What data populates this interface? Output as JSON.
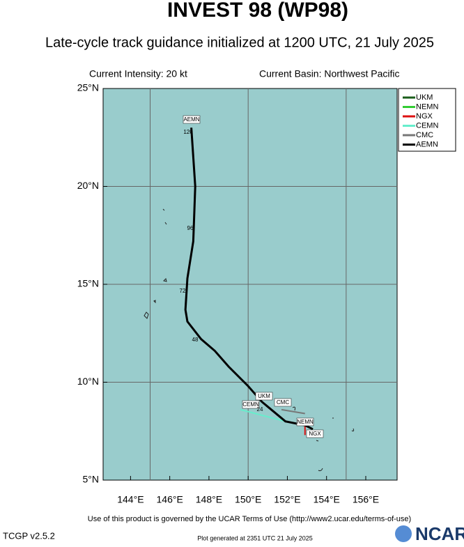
{
  "header": {
    "title": "INVEST 98 (WP98)",
    "subtitle": "Late-cycle track guidance initialized at 1200 UTC, 21 July 2025",
    "intensity": "Current Intensity: 20 kt",
    "basin": "Current Basin: Northwest Pacific"
  },
  "map": {
    "xlim": [
      142.6,
      157.6
    ],
    "ylim": [
      5,
      25
    ],
    "xticks": [
      {
        "value": 144,
        "label": "144°E"
      },
      {
        "value": 146,
        "label": "146°E"
      },
      {
        "value": 148,
        "label": "148°E"
      },
      {
        "value": 150,
        "label": "150°E"
      },
      {
        "value": 152,
        "label": "152°E"
      },
      {
        "value": 154,
        "label": "154°E"
      },
      {
        "value": 156,
        "label": "156°E"
      }
    ],
    "yticks": [
      {
        "value": 5,
        "label": "5°N"
      },
      {
        "value": 10,
        "label": "10°N"
      },
      {
        "value": 15,
        "label": "15°N"
      },
      {
        "value": 20,
        "label": "20°N"
      },
      {
        "value": 25,
        "label": "25°N"
      }
    ],
    "grid_lons": [
      145,
      150,
      155
    ],
    "grid_lats": [
      10,
      15,
      20
    ],
    "tracks": [
      {
        "name": "UKM",
        "color": "#1a5e1a",
        "lon": [
          153.3,
          152.9,
          151.9,
          150.7
        ],
        "lat": [
          7.6,
          7.8,
          8.0,
          9.0
        ]
      },
      {
        "name": "NEMN",
        "color": "#33cc33",
        "lon": [
          153.3,
          152.9
        ],
        "lat": [
          7.6,
          7.8
        ]
      },
      {
        "name": "NGX",
        "color": "#dd1111",
        "lon": [
          152.9,
          152.9
        ],
        "lat": [
          7.8,
          7.3
        ]
      },
      {
        "name": "CEMN",
        "color": "#66eecc",
        "lon": [
          151.9,
          149.6
        ],
        "lat": [
          8.0,
          8.6
        ]
      },
      {
        "name": "CMC",
        "color": "#777777",
        "lon": [
          152.9,
          151.7
        ],
        "lat": [
          8.4,
          8.6
        ]
      },
      {
        "name": "AEMN",
        "color": "#000000",
        "lon": [
          153.3,
          152.9,
          151.9,
          150.7,
          150.0,
          149.0,
          148.3,
          147.6,
          146.9,
          146.8,
          146.9,
          147.2,
          147.3,
          147.1
        ],
        "lat": [
          7.6,
          7.8,
          8.0,
          9.0,
          9.8,
          10.8,
          11.6,
          12.2,
          13.1,
          13.7,
          15.3,
          17.2,
          20.0,
          23.0
        ]
      }
    ],
    "hour_labels": [
      120,
      96,
      72,
      48,
      24
    ]
  },
  "footer": {
    "terms": "Use of this product is governed by the UCAR Terms of Use (http://www2.ucar.edu/terms-of-use)",
    "version": "TCGP v2.5.2",
    "generated": "Plot generated at 2351 UTC   21 July 2025",
    "logo": "NCAR"
  }
}
